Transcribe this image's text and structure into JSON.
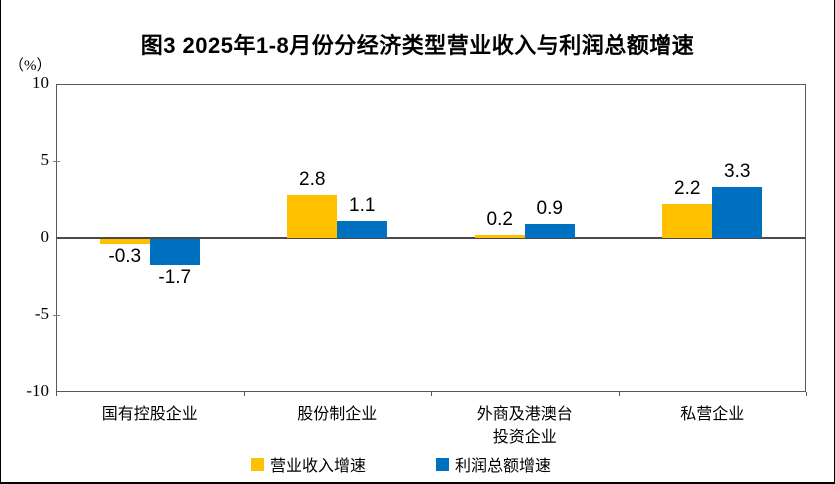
{
  "title": "图3  2025年1-8月份分经济类型营业收入与利润总额增速",
  "y_axis_unit": "（%）",
  "chart_data": {
    "type": "bar",
    "title": "图3  2025年1-8月份分经济类型营业收入与利润总额增速",
    "categories": [
      "国有控股企业",
      "股份制企业",
      "外商及港澳台\n投资企业",
      "私营企业"
    ],
    "series": [
      {
        "name": "营业收入增速",
        "color": "#FFC000",
        "values": [
          -0.3,
          2.8,
          0.2,
          2.2
        ]
      },
      {
        "name": "利润总额增速",
        "color": "#0070C0",
        "values": [
          -1.7,
          1.1,
          0.9,
          3.3
        ]
      }
    ],
    "ylabel": "（%）",
    "ylim": [
      -10,
      10
    ],
    "yticks": [
      10,
      5,
      0,
      -5,
      -10
    ],
    "grid": false,
    "legend_position": "bottom",
    "colors": {
      "revenue": "#FFC000",
      "profit": "#0070C0",
      "axis": "#595959",
      "text": "#000000"
    }
  }
}
